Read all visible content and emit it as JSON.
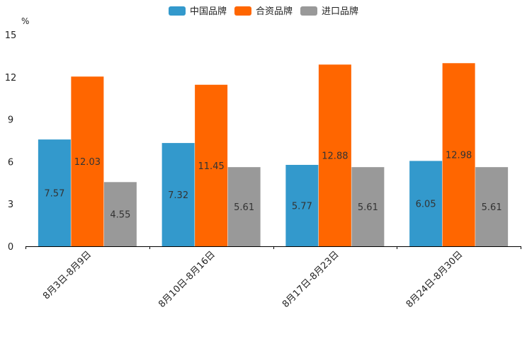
{
  "chart_data": {
    "type": "bar",
    "title": "",
    "xlabel": "",
    "ylabel": "%",
    "ylim": [
      0,
      15
    ],
    "yticks": [
      0,
      3,
      6,
      9,
      12,
      15
    ],
    "legend_position": "top-center",
    "grid": false,
    "categories": [
      "8月3日-8月9日",
      "8月10日-8月16日",
      "8月17日-8月23日",
      "8月24日-8月30日"
    ],
    "series": [
      {
        "name": "中国品牌",
        "color": "#3399cc",
        "values": [
          7.57,
          7.32,
          5.77,
          6.05
        ]
      },
      {
        "name": "合资品牌",
        "color": "#ff6600",
        "values": [
          12.03,
          11.45,
          12.88,
          12.98
        ]
      },
      {
        "name": "进口品牌",
        "color": "#999999",
        "values": [
          4.55,
          5.61,
          5.61,
          5.61
        ]
      }
    ]
  }
}
